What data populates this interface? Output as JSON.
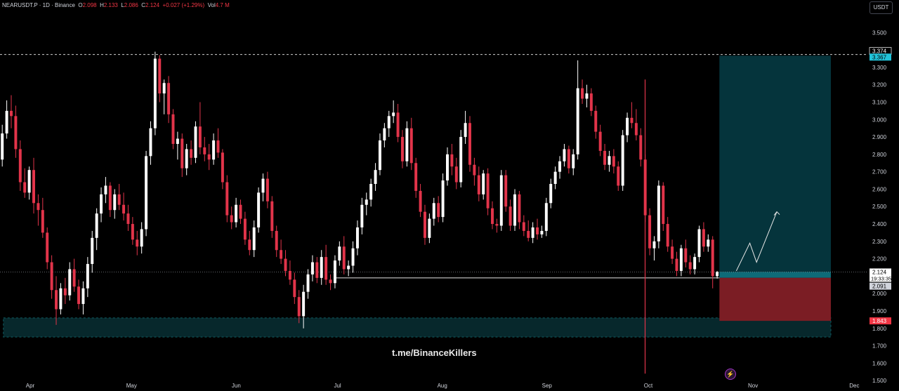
{
  "header": {
    "symbol": "NEARUSDT.P · 1D · Binance",
    "open_label": "O",
    "open": "2.098",
    "high_label": "H",
    "high": "2.133",
    "low_label": "L",
    "low": "2.086",
    "close_label": "C",
    "close": "2.124",
    "change": "+0.027 (+1.29%)",
    "vol_label": "Vol",
    "vol": "4.7 M"
  },
  "currency_button": "USDT",
  "watermark": "t.me/BinanceKillers",
  "colors": {
    "background": "#000000",
    "bull": "#ffffff",
    "bear": "#e2344a",
    "target_zone": "#05343c",
    "stop_zone": "#7b1d24",
    "support_zone": "#07282c"
  },
  "icons": {
    "bottom_marker": "lightning-icon"
  },
  "chart_data": {
    "type": "candlestick",
    "title": "NEARUSDT.P · 1D · Binance",
    "x_tick_labels": [
      "Apr",
      "May",
      "Jun",
      "Jul",
      "Aug",
      "Sep",
      "Oct",
      "Nov",
      "Dec"
    ],
    "y_tick_labels": [
      "1.500",
      "1.600",
      "1.700",
      "1.800",
      "1.900",
      "2.000",
      "2.100",
      "2.200",
      "2.300",
      "2.400",
      "2.500",
      "2.600",
      "2.700",
      "2.800",
      "2.900",
      "3.000",
      "3.100",
      "3.200",
      "3.300",
      "3.400",
      "3.500"
    ],
    "ylim": [
      1.44,
      3.57
    ],
    "x_range_days": [
      0,
      246
    ],
    "price_labels": [
      {
        "text": "3.374",
        "value": 3.374,
        "style": "outline"
      },
      {
        "text": "3.367",
        "value": 3.367,
        "style": "cyan"
      },
      {
        "text": "2.124",
        "value": 2.124,
        "style": "current",
        "countdown": "19:33:35"
      },
      {
        "text": "2.091",
        "value": 2.091,
        "style": "grey"
      },
      {
        "text": "1.843",
        "value": 1.843,
        "style": "red"
      }
    ],
    "levels": {
      "resistance_dashed": 3.374,
      "entry_line": 2.09,
      "entry_line_start_day": 99,
      "current_price": 2.124
    },
    "zones": {
      "target": {
        "from_day": 213,
        "to_day": 246,
        "low": 2.124,
        "high": 3.367
      },
      "stop": {
        "from_day": 213,
        "to_day": 246,
        "low": 1.843,
        "high": 2.091
      },
      "support": {
        "from_day": 1,
        "to_day": 246,
        "low": 1.75,
        "high": 1.86
      }
    },
    "projection_arrow": [
      [
        2.13,
        218
      ],
      [
        2.29,
        222
      ],
      [
        2.18,
        224
      ],
      [
        2.47,
        230
      ]
    ],
    "spike_line": {
      "day": 191,
      "low": 1.54,
      "high": 3.23
    },
    "candles_ohlc": [
      [
        2.77,
        2.97,
        2.73,
        2.92
      ],
      [
        2.92,
        3.11,
        2.89,
        3.05
      ],
      [
        3.05,
        3.14,
        2.95,
        3.02
      ],
      [
        3.02,
        3.08,
        2.78,
        2.83
      ],
      [
        2.83,
        2.88,
        2.59,
        2.64
      ],
      [
        2.64,
        2.72,
        2.55,
        2.58
      ],
      [
        2.58,
        2.73,
        2.54,
        2.71
      ],
      [
        2.71,
        2.78,
        2.46,
        2.52
      ],
      [
        2.52,
        2.57,
        2.39,
        2.48
      ],
      [
        2.48,
        2.55,
        2.32,
        2.35
      ],
      [
        2.35,
        2.38,
        2.14,
        2.18
      ],
      [
        2.18,
        2.22,
        1.97,
        2.02
      ],
      [
        2.02,
        2.1,
        1.82,
        1.91
      ],
      [
        1.91,
        2.06,
        1.88,
        2.03
      ],
      [
        2.03,
        2.09,
        1.94,
        1.99
      ],
      [
        1.99,
        2.18,
        1.96,
        2.14
      ],
      [
        2.14,
        2.2,
        2.01,
        2.04
      ],
      [
        2.04,
        2.08,
        1.91,
        1.94
      ],
      [
        1.94,
        2.07,
        1.88,
        2.03
      ],
      [
        2.03,
        2.21,
        1.98,
        2.17
      ],
      [
        2.17,
        2.36,
        2.12,
        2.32
      ],
      [
        2.32,
        2.49,
        2.25,
        2.46
      ],
      [
        2.46,
        2.61,
        2.41,
        2.57
      ],
      [
        2.57,
        2.67,
        2.52,
        2.62
      ],
      [
        2.62,
        2.64,
        2.44,
        2.48
      ],
      [
        2.48,
        2.6,
        2.43,
        2.57
      ],
      [
        2.57,
        2.63,
        2.48,
        2.51
      ],
      [
        2.51,
        2.58,
        2.42,
        2.46
      ],
      [
        2.46,
        2.51,
        2.36,
        2.4
      ],
      [
        2.4,
        2.44,
        2.28,
        2.31
      ],
      [
        2.31,
        2.36,
        2.22,
        2.27
      ],
      [
        2.27,
        2.41,
        2.23,
        2.37
      ],
      [
        2.37,
        2.82,
        2.33,
        2.79
      ],
      [
        2.79,
        2.99,
        2.74,
        2.95
      ],
      [
        2.95,
        3.39,
        2.91,
        3.35
      ],
      [
        3.35,
        3.37,
        3.1,
        3.15
      ],
      [
        3.15,
        3.23,
        3.03,
        3.21
      ],
      [
        3.21,
        3.25,
        2.98,
        3.03
      ],
      [
        3.03,
        3.06,
        2.83,
        2.86
      ],
      [
        2.86,
        2.93,
        2.77,
        2.89
      ],
      [
        2.89,
        2.92,
        2.67,
        2.72
      ],
      [
        2.72,
        2.86,
        2.68,
        2.83
      ],
      [
        2.83,
        2.88,
        2.74,
        2.78
      ],
      [
        2.78,
        2.99,
        2.75,
        2.96
      ],
      [
        2.96,
        3.1,
        2.8,
        2.84
      ],
      [
        2.84,
        2.9,
        2.76,
        2.8
      ],
      [
        2.8,
        2.86,
        2.71,
        2.77
      ],
      [
        2.77,
        2.92,
        2.74,
        2.88
      ],
      [
        2.88,
        2.95,
        2.78,
        2.81
      ],
      [
        2.81,
        2.83,
        2.6,
        2.64
      ],
      [
        2.64,
        2.68,
        2.41,
        2.45
      ],
      [
        2.45,
        2.5,
        2.37,
        2.41
      ],
      [
        2.41,
        2.55,
        2.38,
        2.51
      ],
      [
        2.51,
        2.54,
        2.4,
        2.43
      ],
      [
        2.43,
        2.47,
        2.28,
        2.31
      ],
      [
        2.31,
        2.36,
        2.22,
        2.25
      ],
      [
        2.25,
        2.42,
        2.21,
        2.38
      ],
      [
        2.38,
        2.61,
        2.35,
        2.58
      ],
      [
        2.58,
        2.69,
        2.53,
        2.66
      ],
      [
        2.66,
        2.7,
        2.49,
        2.53
      ],
      [
        2.53,
        2.56,
        2.32,
        2.36
      ],
      [
        2.36,
        2.39,
        2.21,
        2.25
      ],
      [
        2.25,
        2.31,
        2.17,
        2.2
      ],
      [
        2.2,
        2.25,
        2.1,
        2.13
      ],
      [
        2.13,
        2.19,
        2.05,
        2.08
      ],
      [
        2.08,
        2.12,
        1.94,
        1.98
      ],
      [
        1.98,
        2.02,
        1.83,
        1.87
      ],
      [
        1.87,
        2.05,
        1.8,
        2.01
      ],
      [
        2.01,
        2.14,
        1.97,
        2.11
      ],
      [
        2.11,
        2.22,
        2.07,
        2.18
      ],
      [
        2.18,
        2.21,
        2.06,
        2.09
      ],
      [
        2.09,
        2.25,
        2.05,
        2.21
      ],
      [
        2.21,
        2.28,
        2.05,
        2.08
      ],
      [
        2.08,
        2.11,
        2.02,
        2.06
      ],
      [
        2.06,
        2.22,
        2.03,
        2.19
      ],
      [
        2.19,
        2.3,
        2.16,
        2.27
      ],
      [
        2.27,
        2.33,
        2.11,
        2.14
      ],
      [
        2.14,
        2.19,
        2.1,
        2.16
      ],
      [
        2.16,
        2.3,
        2.12,
        2.26
      ],
      [
        2.26,
        2.42,
        2.22,
        2.38
      ],
      [
        2.38,
        2.55,
        2.34,
        2.51
      ],
      [
        2.51,
        2.58,
        2.45,
        2.54
      ],
      [
        2.54,
        2.66,
        2.5,
        2.63
      ],
      [
        2.63,
        2.75,
        2.59,
        2.71
      ],
      [
        2.71,
        2.92,
        2.68,
        2.88
      ],
      [
        2.88,
        2.98,
        2.84,
        2.95
      ],
      [
        2.95,
        3.05,
        2.9,
        3.02
      ],
      [
        3.02,
        3.11,
        2.98,
        3.04
      ],
      [
        3.04,
        3.09,
        2.87,
        2.9
      ],
      [
        2.9,
        2.94,
        2.72,
        2.76
      ],
      [
        2.76,
        2.99,
        2.73,
        2.95
      ],
      [
        2.95,
        3.01,
        2.71,
        2.75
      ],
      [
        2.75,
        2.78,
        2.55,
        2.59
      ],
      [
        2.59,
        2.63,
        2.44,
        2.47
      ],
      [
        2.47,
        2.51,
        2.28,
        2.32
      ],
      [
        2.32,
        2.46,
        2.29,
        2.43
      ],
      [
        2.43,
        2.55,
        2.39,
        2.52
      ],
      [
        2.52,
        2.56,
        2.41,
        2.44
      ],
      [
        2.44,
        2.69,
        2.41,
        2.65
      ],
      [
        2.65,
        2.84,
        2.62,
        2.8
      ],
      [
        2.8,
        2.86,
        2.68,
        2.73
      ],
      [
        2.73,
        2.78,
        2.6,
        2.64
      ],
      [
        2.64,
        2.94,
        2.61,
        2.9
      ],
      [
        2.9,
        3.05,
        2.86,
        2.98
      ],
      [
        2.98,
        3.02,
        2.7,
        2.74
      ],
      [
        2.74,
        2.78,
        2.62,
        2.68
      ],
      [
        2.68,
        2.73,
        2.53,
        2.57
      ],
      [
        2.57,
        2.71,
        2.54,
        2.69
      ],
      [
        2.69,
        2.72,
        2.45,
        2.49
      ],
      [
        2.49,
        2.53,
        2.37,
        2.4
      ],
      [
        2.4,
        2.43,
        2.35,
        2.39
      ],
      [
        2.39,
        2.71,
        2.36,
        2.68
      ],
      [
        2.68,
        2.71,
        2.47,
        2.5
      ],
      [
        2.5,
        2.54,
        2.36,
        2.39
      ],
      [
        2.39,
        2.6,
        2.36,
        2.57
      ],
      [
        2.57,
        2.59,
        2.37,
        2.41
      ],
      [
        2.41,
        2.45,
        2.33,
        2.36
      ],
      [
        2.36,
        2.42,
        2.3,
        2.32
      ],
      [
        2.32,
        2.41,
        2.29,
        2.38
      ],
      [
        2.38,
        2.43,
        2.31,
        2.34
      ],
      [
        2.34,
        2.39,
        2.32,
        2.36
      ],
      [
        2.36,
        2.55,
        2.33,
        2.52
      ],
      [
        2.52,
        2.66,
        2.49,
        2.63
      ],
      [
        2.63,
        2.73,
        2.6,
        2.7
      ],
      [
        2.7,
        2.79,
        2.66,
        2.76
      ],
      [
        2.76,
        2.86,
        2.73,
        2.83
      ],
      [
        2.83,
        2.85,
        2.69,
        2.72
      ],
      [
        2.72,
        2.83,
        2.68,
        2.8
      ],
      [
        2.8,
        3.34,
        2.77,
        3.18
      ],
      [
        3.18,
        3.23,
        3.09,
        3.12
      ],
      [
        3.12,
        3.2,
        3.07,
        3.15
      ],
      [
        3.15,
        3.18,
        3.02,
        3.05
      ],
      [
        3.05,
        3.08,
        2.89,
        2.93
      ],
      [
        2.93,
        2.97,
        2.79,
        2.82
      ],
      [
        2.82,
        2.86,
        2.71,
        2.74
      ],
      [
        2.74,
        2.82,
        2.7,
        2.79
      ],
      [
        2.79,
        2.83,
        2.69,
        2.73
      ],
      [
        2.73,
        2.76,
        2.59,
        2.62
      ],
      [
        2.62,
        2.94,
        2.59,
        2.91
      ],
      [
        2.91,
        3.04,
        2.87,
        3.01
      ],
      [
        3.01,
        3.1,
        2.95,
        2.98
      ],
      [
        2.98,
        3.06,
        2.88,
        2.91
      ],
      [
        2.91,
        2.95,
        2.73,
        2.77
      ],
      [
        2.77,
        2.8,
        2.41,
        2.45
      ],
      [
        2.45,
        2.49,
        2.22,
        2.26
      ],
      [
        2.26,
        2.33,
        2.19,
        2.3
      ],
      [
        2.3,
        2.65,
        2.26,
        2.62
      ],
      [
        2.62,
        2.64,
        2.36,
        2.4
      ],
      [
        2.4,
        2.44,
        2.24,
        2.27
      ],
      [
        2.27,
        2.31,
        2.17,
        2.2
      ],
      [
        2.2,
        2.24,
        2.1,
        2.13
      ],
      [
        2.13,
        2.28,
        2.1,
        2.26
      ],
      [
        2.26,
        2.31,
        2.15,
        2.18
      ],
      [
        2.18,
        2.22,
        2.11,
        2.14
      ],
      [
        2.14,
        2.23,
        2.11,
        2.21
      ],
      [
        2.21,
        2.39,
        2.18,
        2.37
      ],
      [
        2.37,
        2.41,
        2.24,
        2.27
      ],
      [
        2.27,
        2.34,
        2.24,
        2.31
      ],
      [
        2.31,
        2.33,
        2.03,
        2.1
      ],
      [
        2.1,
        2.13,
        2.086,
        2.124
      ]
    ]
  }
}
